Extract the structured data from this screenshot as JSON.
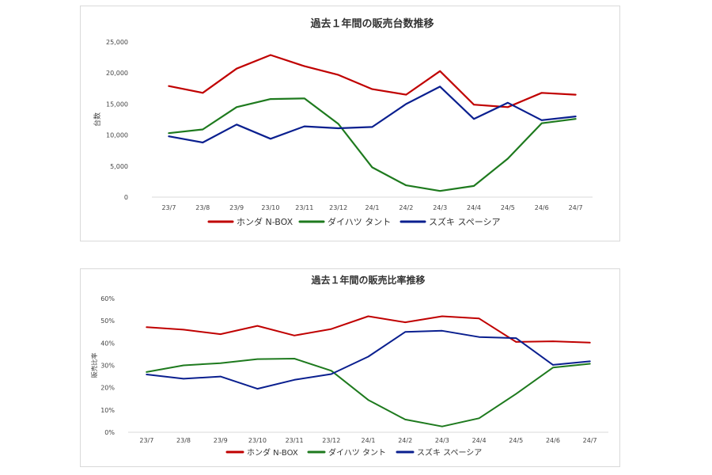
{
  "chart_data": [
    {
      "type": "line",
      "title": "過去１年間の販売台数推移",
      "xlabel": "",
      "ylabel": "台数",
      "categories": [
        "23/7",
        "23/8",
        "23/9",
        "23/10",
        "23/11",
        "23/12",
        "24/1",
        "24/2",
        "24/3",
        "24/4",
        "24/5",
        "24/6",
        "24/7"
      ],
      "ylim": [
        0,
        25000
      ],
      "yticks": [
        "0",
        "5,000",
        "10,000",
        "15,000",
        "20,000",
        "25,000"
      ],
      "grid": false,
      "legend_position": "bottom",
      "series": [
        {
          "name": "ホンダ N-BOX",
          "color": "#c00000",
          "values": [
            17900,
            16800,
            20700,
            22900,
            21100,
            19700,
            17400,
            16500,
            20300,
            14900,
            14500,
            16800,
            16500
          ]
        },
        {
          "name": "ダイハツ タント",
          "color": "#1e7a1e",
          "values": [
            10300,
            10900,
            14500,
            15800,
            15900,
            11800,
            4800,
            1900,
            1000,
            1800,
            6200,
            11900,
            12600
          ]
        },
        {
          "name": "スズキ スペーシア",
          "color": "#0a1f8f",
          "values": [
            9800,
            8800,
            11700,
            9400,
            11400,
            11100,
            11300,
            15000,
            17800,
            12600,
            15200,
            12400,
            13000
          ]
        }
      ]
    },
    {
      "type": "line",
      "title": "過去１年間の販売比率推移",
      "xlabel": "",
      "ylabel": "販売比率",
      "categories": [
        "23/7",
        "23/8",
        "23/9",
        "23/10",
        "23/11",
        "23/12",
        "24/1",
        "24/2",
        "24/3",
        "24/4",
        "24/5",
        "24/6",
        "24/7"
      ],
      "ylim": [
        0,
        60
      ],
      "yticks": [
        "0%",
        "10%",
        "20%",
        "30%",
        "40%",
        "50%",
        "60%"
      ],
      "grid": false,
      "legend_position": "bottom",
      "series": [
        {
          "name": "ホンダ N-BOX",
          "color": "#c00000",
          "values": [
            47.1,
            46.0,
            44.0,
            47.7,
            43.4,
            46.3,
            52.0,
            49.3,
            52.0,
            51.0,
            40.5,
            40.8,
            40.2
          ]
        },
        {
          "name": "ダイハツ タント",
          "color": "#1e7a1e",
          "values": [
            27.0,
            30.0,
            31.0,
            32.8,
            33.0,
            27.6,
            14.5,
            5.7,
            2.6,
            6.3,
            17.2,
            29.0,
            30.7
          ]
        },
        {
          "name": "スズキ スペーシア",
          "color": "#0a1f8f",
          "values": [
            25.9,
            24.0,
            25.0,
            19.5,
            23.5,
            26.1,
            33.9,
            45.0,
            45.5,
            42.7,
            42.2,
            30.2,
            31.8
          ]
        }
      ]
    }
  ]
}
